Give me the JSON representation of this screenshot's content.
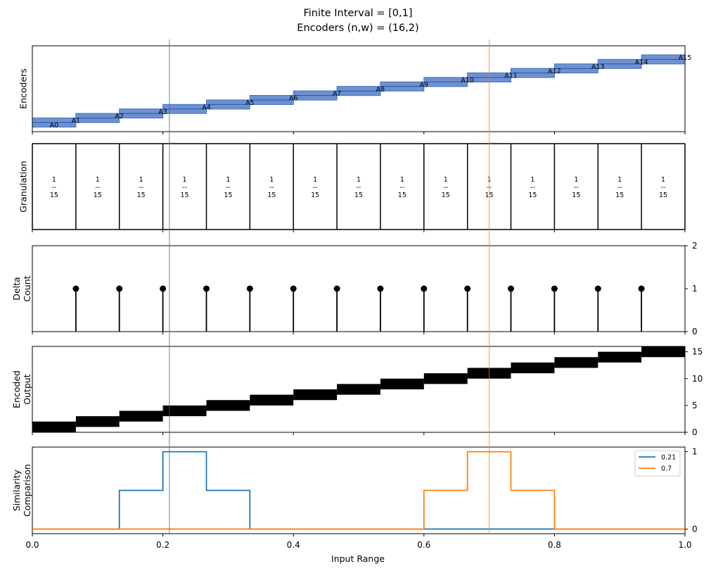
{
  "figure": {
    "title_line1": "Finite Interval = [0,1]",
    "title_line2": "Encoders (n,w) = (16,2)",
    "xlabel": "Input Range",
    "x_ticks": [
      "0.0",
      "0.2",
      "0.4",
      "0.6",
      "0.8",
      "1.0"
    ]
  },
  "colors": {
    "encoder_fill": "#4472c4",
    "blue": "#1f77b4",
    "orange": "#ff7f0e",
    "black": "#000000"
  },
  "chart_data": [
    {
      "type": "bar",
      "name": "encoders",
      "ylabel": "Encoders",
      "xlim": [
        0,
        1
      ],
      "n": 16,
      "w": 2,
      "labels": [
        "A0",
        "A1",
        "A2",
        "A3",
        "A4",
        "A5",
        "A6",
        "A7",
        "A8",
        "A9",
        "A10",
        "A11",
        "A12",
        "A13",
        "A14",
        "A15"
      ],
      "intervals": [
        [
          0.0,
          0.0667
        ],
        [
          0.0667,
          0.1333
        ],
        [
          0.1333,
          0.2
        ],
        [
          0.2,
          0.2667
        ],
        [
          0.2667,
          0.3333
        ],
        [
          0.3333,
          0.4
        ],
        [
          0.4,
          0.4667
        ],
        [
          0.4667,
          0.5333
        ],
        [
          0.5333,
          0.6
        ],
        [
          0.6,
          0.6667
        ],
        [
          0.6667,
          0.7333
        ],
        [
          0.7333,
          0.8
        ],
        [
          0.8,
          0.8667
        ],
        [
          0.8667,
          0.9333
        ],
        [
          0.9333,
          1.0
        ],
        [
          1.0,
          1.0
        ]
      ]
    },
    {
      "type": "table",
      "name": "granulation",
      "ylabel": "Granulation",
      "boundaries": [
        0.0,
        0.0667,
        0.1333,
        0.2,
        0.2667,
        0.3333,
        0.4,
        0.4667,
        0.5333,
        0.6,
        0.6667,
        0.7333,
        0.8,
        0.8667,
        0.9333,
        1.0
      ],
      "cell_numerator": "1",
      "cell_bar": "--",
      "cell_denominator": "15"
    },
    {
      "type": "scatter",
      "name": "delta-count",
      "ylabel_line1": "Delta",
      "ylabel_line2": "Count",
      "x": [
        0.0667,
        0.1333,
        0.2,
        0.2667,
        0.3333,
        0.4,
        0.4667,
        0.5333,
        0.6,
        0.6667,
        0.7333,
        0.8,
        0.8667,
        0.9333
      ],
      "y": [
        1,
        1,
        1,
        1,
        1,
        1,
        1,
        1,
        1,
        1,
        1,
        1,
        1,
        1
      ],
      "ylim": [
        0,
        2
      ],
      "y_ticks": [
        "0",
        "1",
        "2"
      ]
    },
    {
      "type": "heatmap",
      "name": "encoded-output",
      "ylabel_line1": "Encoded",
      "ylabel_line2": "Output",
      "ylim": [
        0,
        16
      ],
      "y_ticks": [
        "0",
        "5",
        "10",
        "15"
      ],
      "segments": [
        {
          "x0": 0.0,
          "x1": 0.0667,
          "y0": 0,
          "y1": 2
        },
        {
          "x0": 0.0667,
          "x1": 0.1333,
          "y0": 1,
          "y1": 3
        },
        {
          "x0": 0.1333,
          "x1": 0.2,
          "y0": 2,
          "y1": 4
        },
        {
          "x0": 0.2,
          "x1": 0.2667,
          "y0": 3,
          "y1": 5
        },
        {
          "x0": 0.2667,
          "x1": 0.3333,
          "y0": 4,
          "y1": 6
        },
        {
          "x0": 0.3333,
          "x1": 0.4,
          "y0": 5,
          "y1": 7
        },
        {
          "x0": 0.4,
          "x1": 0.4667,
          "y0": 6,
          "y1": 8
        },
        {
          "x0": 0.4667,
          "x1": 0.5333,
          "y0": 7,
          "y1": 9
        },
        {
          "x0": 0.5333,
          "x1": 0.6,
          "y0": 8,
          "y1": 10
        },
        {
          "x0": 0.6,
          "x1": 0.6667,
          "y0": 9,
          "y1": 11
        },
        {
          "x0": 0.6667,
          "x1": 0.7333,
          "y0": 10,
          "y1": 12
        },
        {
          "x0": 0.7333,
          "x1": 0.8,
          "y0": 11,
          "y1": 13
        },
        {
          "x0": 0.8,
          "x1": 0.8667,
          "y0": 12,
          "y1": 14
        },
        {
          "x0": 0.8667,
          "x1": 0.9333,
          "y0": 13,
          "y1": 15
        },
        {
          "x0": 0.9333,
          "x1": 1.0,
          "y0": 14,
          "y1": 16
        }
      ]
    },
    {
      "type": "line",
      "name": "similarity",
      "ylabel_line1": "Similarity",
      "ylabel_line2": "Comparison",
      "ylim": [
        -0.06,
        1.06
      ],
      "y_ticks": [
        "0",
        "1"
      ],
      "legend_position": "top-right",
      "series": [
        {
          "name": "0.21",
          "color": "blue",
          "x": [
            0.0,
            0.1333,
            0.1333,
            0.2,
            0.2,
            0.2667,
            0.2667,
            0.3333,
            0.3333,
            1.0
          ],
          "y": [
            0,
            0,
            0.5,
            0.5,
            1,
            1,
            0.5,
            0.5,
            0,
            0
          ]
        },
        {
          "name": "0.7",
          "color": "orange",
          "x": [
            0.0,
            0.6,
            0.6,
            0.6667,
            0.6667,
            0.7333,
            0.7333,
            0.8,
            0.8,
            1.0
          ],
          "y": [
            0,
            0,
            0.5,
            0.5,
            1,
            1,
            0.5,
            0.5,
            0,
            0
          ]
        }
      ]
    }
  ],
  "markers": [
    {
      "x": 0.21,
      "color": "blue"
    },
    {
      "x": 0.7,
      "color": "orange"
    }
  ]
}
